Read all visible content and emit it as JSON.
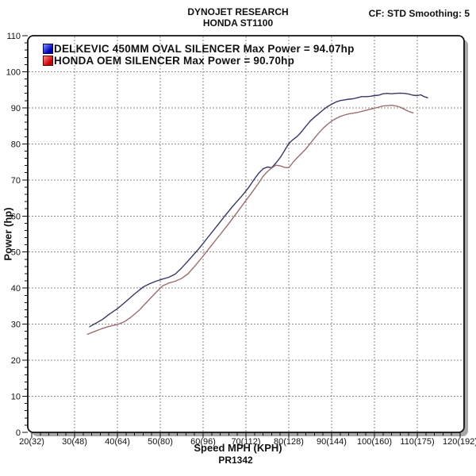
{
  "header": {
    "title_line1": "DYNOJET RESEARCH",
    "title_line2": "HONDA ST1100",
    "settings": "CF: STD  Smoothing: 5"
  },
  "legend": {
    "items": [
      {
        "label": "DELKEVIC 450MM OVAL SILENCER Max Power = 94.07hp",
        "swatch_light": "#7e9bff",
        "swatch_dark": "#0000b4",
        "swatch_border": "#000050"
      },
      {
        "label": "HONDA OEM SILENCER Max Power = 90.70hp",
        "swatch_light": "#ff8c8c",
        "swatch_dark": "#cc0000",
        "swatch_border": "#550000"
      }
    ]
  },
  "axes": {
    "x_title": "Speed MPH (KPH)",
    "y_title": "Power (hp)",
    "run_id": "PR1342"
  },
  "chart_data": {
    "type": "line",
    "title": "DYNOJET RESEARCH HONDA ST1100",
    "xlabel": "Speed MPH (KPH)",
    "ylabel": "Power (hp)",
    "xlim": [
      20,
      120
    ],
    "ylim": [
      0,
      110
    ],
    "x_major_ticks": [
      20,
      30,
      40,
      50,
      60,
      70,
      80,
      90,
      100,
      110,
      120
    ],
    "x_major_tick_labels": [
      "20(32)",
      "30(48)",
      "40(64)",
      "50(80)",
      "60(96)",
      "70(112)",
      "80(128)",
      "90(144)",
      "100(160)",
      "110(175)",
      "120(192)"
    ],
    "x_minor_step": 2,
    "y_major_step": 10,
    "y_minor_step": 2,
    "grid": "dashed-gray-major-both-axes",
    "legend_position": "top-left-inside",
    "frame_shadow_color": "#a8a8a8",
    "grid_color": "#8a8a8a",
    "series": [
      {
        "name": "DELKEVIC 450MM OVAL SILENCER",
        "max_power_hp": 94.07,
        "line_color": "#383868",
        "points_mph_hp": [
          [
            33.5,
            29.3
          ],
          [
            35,
            30.3
          ],
          [
            36.5,
            31.3
          ],
          [
            38,
            32.7
          ],
          [
            40,
            34.3
          ],
          [
            42,
            36.3
          ],
          [
            44,
            38.4
          ],
          [
            46,
            40.3
          ],
          [
            47.5,
            41.2
          ],
          [
            49,
            41.9
          ],
          [
            50.5,
            42.5
          ],
          [
            52,
            43.0
          ],
          [
            53.5,
            43.9
          ],
          [
            55,
            45.6
          ],
          [
            57,
            48.2
          ],
          [
            59,
            50.9
          ],
          [
            61,
            53.9
          ],
          [
            63,
            56.9
          ],
          [
            65,
            59.9
          ],
          [
            67,
            62.8
          ],
          [
            69,
            65.5
          ],
          [
            70.5,
            67.7
          ],
          [
            72,
            70.3
          ],
          [
            73,
            71.9
          ],
          [
            74,
            73.1
          ],
          [
            75,
            73.6
          ],
          [
            76,
            73.4
          ],
          [
            77,
            74.7
          ],
          [
            78,
            76.2
          ],
          [
            79,
            78.1
          ],
          [
            80,
            80.1
          ],
          [
            81,
            81.2
          ],
          [
            82,
            82.1
          ],
          [
            83,
            83.4
          ],
          [
            84,
            84.9
          ],
          [
            85,
            86.3
          ],
          [
            86,
            87.4
          ],
          [
            87,
            88.4
          ],
          [
            88,
            89.4
          ],
          [
            89,
            90.3
          ],
          [
            90,
            91.0
          ],
          [
            91,
            91.6
          ],
          [
            92,
            92.0
          ],
          [
            93,
            92.2
          ],
          [
            94,
            92.4
          ],
          [
            95,
            92.5
          ],
          [
            96,
            92.8
          ],
          [
            97,
            93.1
          ],
          [
            98,
            93.1
          ],
          [
            99,
            93.2
          ],
          [
            100,
            93.4
          ],
          [
            101,
            93.5
          ],
          [
            102,
            93.9
          ],
          [
            103,
            94.0
          ],
          [
            104,
            93.9
          ],
          [
            105,
            94.0
          ],
          [
            106,
            94.07
          ],
          [
            107,
            94.0
          ],
          [
            108,
            93.8
          ],
          [
            109,
            93.5
          ],
          [
            110,
            93.4
          ],
          [
            110.8,
            93.6
          ],
          [
            111.6,
            93.1
          ],
          [
            112.4,
            92.8
          ]
        ]
      },
      {
        "name": "HONDA OEM SILENCER",
        "max_power_hp": 90.7,
        "line_color": "#9a6e6e",
        "points_mph_hp": [
          [
            33,
            27.2
          ],
          [
            34.5,
            27.9
          ],
          [
            36,
            28.6
          ],
          [
            38,
            29.4
          ],
          [
            40,
            29.9
          ],
          [
            41.5,
            30.6
          ],
          [
            43,
            31.8
          ],
          [
            45,
            33.8
          ],
          [
            47,
            36.3
          ],
          [
            49,
            38.8
          ],
          [
            50.5,
            40.6
          ],
          [
            52,
            41.4
          ],
          [
            53.5,
            41.9
          ],
          [
            55,
            42.7
          ],
          [
            56.5,
            44.0
          ],
          [
            58,
            46.0
          ],
          [
            60,
            48.9
          ],
          [
            62,
            51.9
          ],
          [
            64,
            54.9
          ],
          [
            66,
            57.9
          ],
          [
            68,
            61.1
          ],
          [
            70,
            64.3
          ],
          [
            71.5,
            66.7
          ],
          [
            73,
            69.2
          ],
          [
            74,
            71.0
          ],
          [
            75,
            72.3
          ],
          [
            76,
            73.3
          ],
          [
            77,
            74.1
          ],
          [
            78,
            73.9
          ],
          [
            79,
            73.5
          ],
          [
            80,
            73.4
          ],
          [
            81,
            74.9
          ],
          [
            82,
            76.2
          ],
          [
            83,
            77.4
          ],
          [
            84,
            78.6
          ],
          [
            85,
            80.1
          ],
          [
            86,
            81.6
          ],
          [
            87,
            83.0
          ],
          [
            88,
            84.3
          ],
          [
            89,
            85.4
          ],
          [
            90,
            86.3
          ],
          [
            91,
            87.0
          ],
          [
            92,
            87.6
          ],
          [
            93,
            88.0
          ],
          [
            94,
            88.3
          ],
          [
            95,
            88.5
          ],
          [
            96,
            88.7
          ],
          [
            97,
            89.0
          ],
          [
            98,
            89.3
          ],
          [
            99,
            89.6
          ],
          [
            100,
            89.9
          ],
          [
            101,
            90.2
          ],
          [
            102,
            90.5
          ],
          [
            103,
            90.6
          ],
          [
            104,
            90.7
          ],
          [
            105,
            90.5
          ],
          [
            106,
            90.2
          ],
          [
            107,
            89.6
          ],
          [
            108,
            89.0
          ],
          [
            109,
            88.6
          ]
        ]
      }
    ]
  }
}
